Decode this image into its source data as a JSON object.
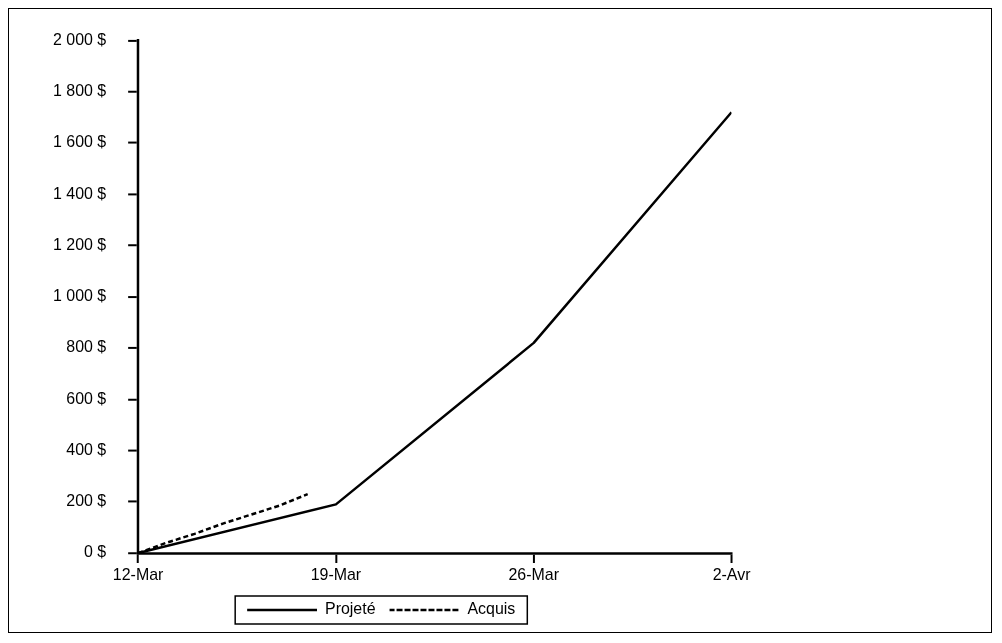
{
  "chart_data": {
    "type": "line",
    "x": [
      "--03-12",
      "--03-19",
      "--03-26",
      "--04-02"
    ],
    "series": [
      {
        "name": "Projeté",
        "color": "#000000",
        "line_style": "solid",
        "values": [
          0,
          190,
          820,
          1720
        ]
      },
      {
        "name": "Acquis",
        "color": "#000000",
        "line_style": "dashed",
        "x": [
          "--03-12",
          "--03-13",
          "--03-14",
          "--03-15",
          "--03-16",
          "--03-17",
          "--03-18"
        ],
        "values": [
          0,
          40,
          75,
          115,
          150,
          185,
          230
        ]
      }
    ],
    "xlim": [
      "--03-12",
      "--04-02"
    ],
    "xticks": [
      {
        "value": "--03-12",
        "label": "12-Mar"
      },
      {
        "value": "--03-19",
        "label": "19-Mar"
      },
      {
        "value": "--03-26",
        "label": "26-Mar"
      },
      {
        "value": "--04-02",
        "label": "2-Avr"
      }
    ],
    "ylim": [
      0,
      2000
    ],
    "yticks": [
      {
        "value": 0,
        "label": "0 $"
      },
      {
        "value": 200,
        "label": "200 $"
      },
      {
        "value": 400,
        "label": "400 $"
      },
      {
        "value": 600,
        "label": "600 $"
      },
      {
        "value": 800,
        "label": "800 $"
      },
      {
        "value": 1000,
        "label": "1 000 $"
      },
      {
        "value": 1200,
        "label": "1 200 $"
      },
      {
        "value": 1400,
        "label": "1 400 $"
      },
      {
        "value": 1600,
        "label": "1 600 $"
      },
      {
        "value": 1800,
        "label": "1 800 $"
      },
      {
        "value": 2000,
        "label": "2 000 $"
      }
    ],
    "grid": false,
    "legend": "bottom",
    "marker": "none"
  }
}
